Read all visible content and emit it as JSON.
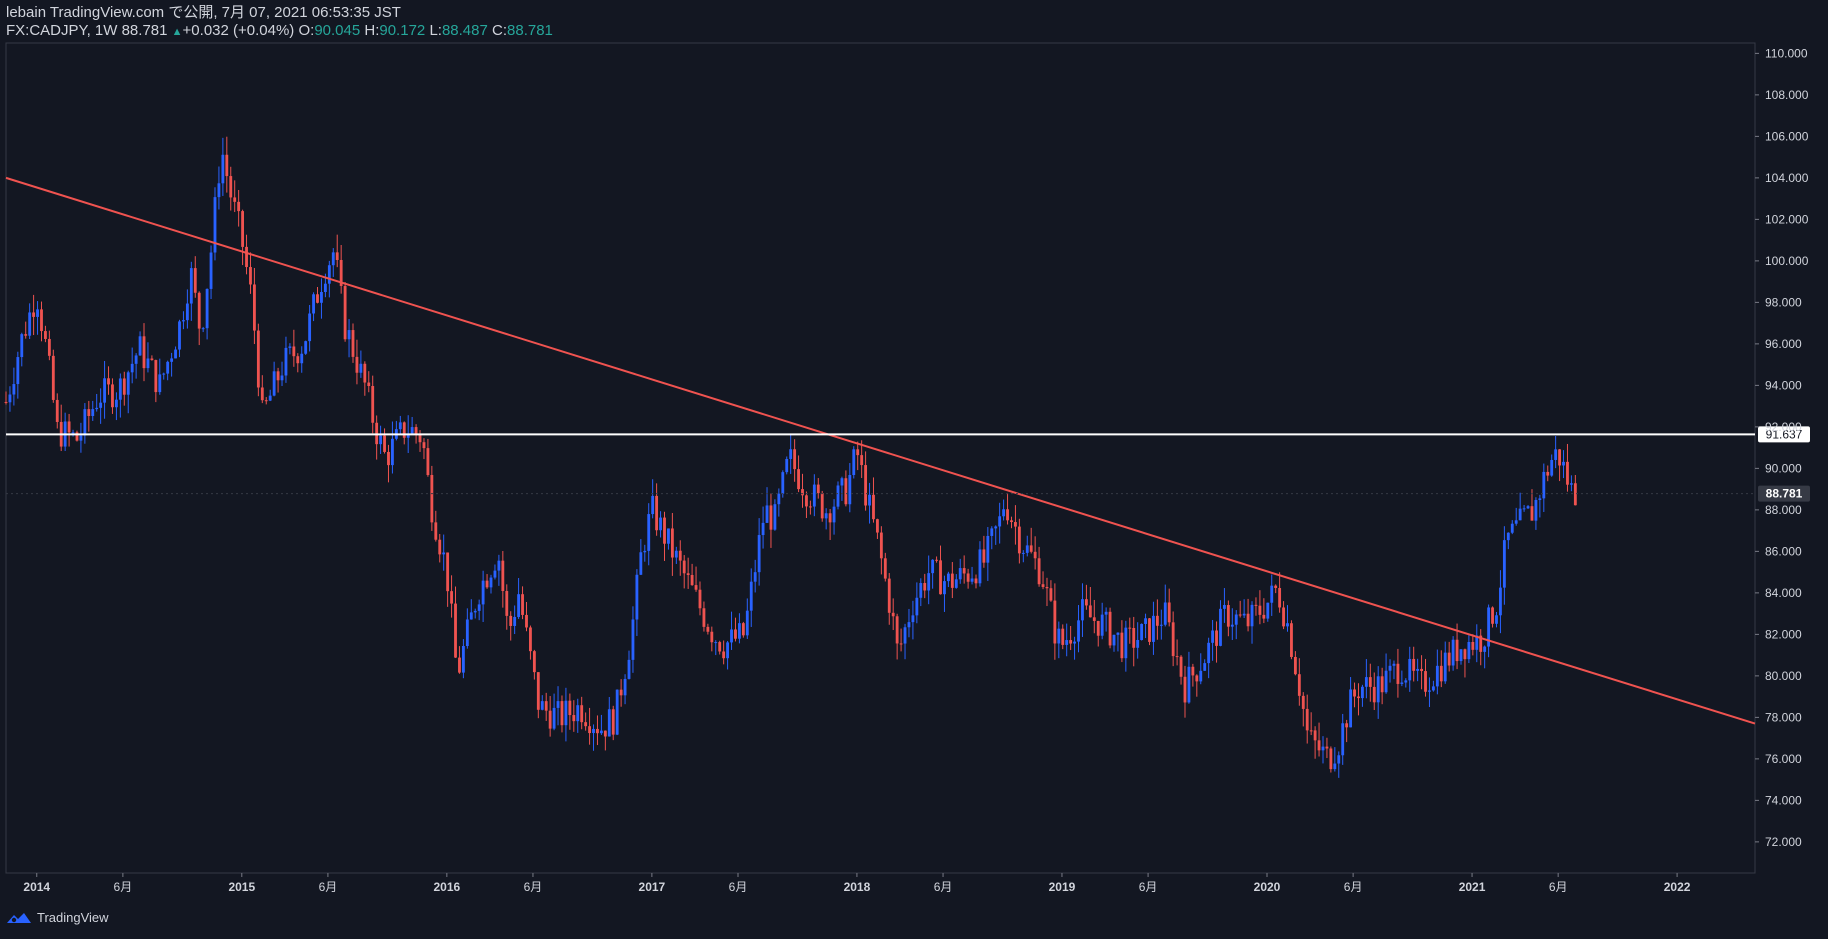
{
  "header": {
    "line1": "lebain TradingView.com で公開, 7月 07, 2021 06:53:35 JST",
    "symbol": "FX:CADJPY, 1W",
    "last": "88.781",
    "change": "+0.032 (+0.04%)",
    "o_label": "O:",
    "o_val": "90.045",
    "h_label": "H:",
    "h_val": "90.172",
    "l_label": "L:",
    "l_val": "88.487",
    "c_label": "C:",
    "c_val": "88.781"
  },
  "footer": {
    "brand": "TradingView"
  },
  "colors": {
    "background": "#131722",
    "bull": "#2962ff",
    "bear": "#ef5350",
    "trendline": "#f05350",
    "hline": "#ffffff",
    "text": "#d1d4dc",
    "accent_teal": "#26a69a"
  },
  "chart_data": {
    "type": "candlestick",
    "symbol": "FX:CADJPY",
    "timeframe": "1W",
    "ylim": [
      70.5,
      110.5
    ],
    "y_ticks": [
      "72.000",
      "74.000",
      "76.000",
      "78.000",
      "80.000",
      "82.000",
      "84.000",
      "86.000",
      "88.000",
      "90.000",
      "92.000",
      "94.000",
      "96.000",
      "98.000",
      "100.000",
      "102.000",
      "104.000",
      "106.000",
      "108.000",
      "110.000"
    ],
    "x_ticks": [
      {
        "label": "2014",
        "x": 2014.0
      },
      {
        "label": "6月",
        "x": 2014.42
      },
      {
        "label": "2015",
        "x": 2015.0
      },
      {
        "label": "6月",
        "x": 2015.42
      },
      {
        "label": "2016",
        "x": 2016.0
      },
      {
        "label": "6月",
        "x": 2016.42
      },
      {
        "label": "2017",
        "x": 2017.0
      },
      {
        "label": "6月",
        "x": 2017.42
      },
      {
        "label": "2018",
        "x": 2018.0
      },
      {
        "label": "6月",
        "x": 2018.42
      },
      {
        "label": "2019",
        "x": 2019.0
      },
      {
        "label": "6月",
        "x": 2019.42
      },
      {
        "label": "2020",
        "x": 2020.0
      },
      {
        "label": "6月",
        "x": 2020.42
      },
      {
        "label": "2021",
        "x": 2021.0
      },
      {
        "label": "6月",
        "x": 2021.42
      },
      {
        "label": "2022",
        "x": 2022.0
      }
    ],
    "x_range": [
      2013.85,
      2022.38
    ],
    "horizontal_line": {
      "value": 91.637,
      "label": "91.637"
    },
    "last_price": {
      "value": 88.781,
      "label": "88.781"
    },
    "trendline": {
      "points": [
        [
          2013.85,
          104.0
        ],
        [
          2022.38,
          77.7
        ]
      ]
    },
    "anchors": [
      [
        2013.85,
        93.2
      ],
      [
        2013.92,
        96.0
      ],
      [
        2014.0,
        98.5
      ],
      [
        2014.05,
        95.5
      ],
      [
        2014.1,
        91.8
      ],
      [
        2014.2,
        91.4
      ],
      [
        2014.3,
        93.5
      ],
      [
        2014.4,
        93.8
      ],
      [
        2014.5,
        95.8
      ],
      [
        2014.6,
        94.0
      ],
      [
        2014.7,
        97.0
      ],
      [
        2014.75,
        99.5
      ],
      [
        2014.8,
        96.5
      ],
      [
        2014.85,
        100.5
      ],
      [
        2014.9,
        105.5
      ],
      [
        2014.95,
        103.0
      ],
      [
        2015.0,
        101.0
      ],
      [
        2015.05,
        98.0
      ],
      [
        2015.1,
        92.5
      ],
      [
        2015.2,
        95.0
      ],
      [
        2015.3,
        96.0
      ],
      [
        2015.4,
        99.5
      ],
      [
        2015.45,
        100.5
      ],
      [
        2015.5,
        97.0
      ],
      [
        2015.6,
        94.0
      ],
      [
        2015.65,
        92.0
      ],
      [
        2015.7,
        90.5
      ],
      [
        2015.8,
        92.0
      ],
      [
        2015.88,
        91.5
      ],
      [
        2015.92,
        88.5
      ],
      [
        2016.0,
        85.0
      ],
      [
        2016.05,
        80.0
      ],
      [
        2016.15,
        84.0
      ],
      [
        2016.25,
        86.0
      ],
      [
        2016.3,
        82.0
      ],
      [
        2016.35,
        84.0
      ],
      [
        2016.45,
        78.5
      ],
      [
        2016.55,
        78.0
      ],
      [
        2016.65,
        78.5
      ],
      [
        2016.75,
        77.5
      ],
      [
        2016.82,
        78.0
      ],
      [
        2016.9,
        82.0
      ],
      [
        2016.95,
        86.0
      ],
      [
        2017.0,
        88.0
      ],
      [
        2017.1,
        86.0
      ],
      [
        2017.2,
        84.0
      ],
      [
        2017.3,
        82.0
      ],
      [
        2017.35,
        81.5
      ],
      [
        2017.45,
        82.0
      ],
      [
        2017.5,
        85.0
      ],
      [
        2017.55,
        88.0
      ],
      [
        2017.6,
        87.5
      ],
      [
        2017.67,
        90.5
      ],
      [
        2017.75,
        89.0
      ],
      [
        2017.85,
        88.0
      ],
      [
        2017.95,
        89.0
      ],
      [
        2018.0,
        90.8
      ],
      [
        2018.05,
        88.5
      ],
      [
        2018.1,
        86.5
      ],
      [
        2018.17,
        83.0
      ],
      [
        2018.2,
        81.0
      ],
      [
        2018.27,
        83.5
      ],
      [
        2018.35,
        85.0
      ],
      [
        2018.45,
        84.5
      ],
      [
        2018.55,
        85.0
      ],
      [
        2018.62,
        85.5
      ],
      [
        2018.7,
        87.5
      ],
      [
        2018.72,
        88.5
      ],
      [
        2018.8,
        86.5
      ],
      [
        2018.9,
        85.0
      ],
      [
        2018.97,
        82.0
      ],
      [
        2019.0,
        81.5
      ],
      [
        2019.1,
        83.0
      ],
      [
        2019.2,
        82.5
      ],
      [
        2019.3,
        81.5
      ],
      [
        2019.4,
        82.0
      ],
      [
        2019.5,
        83.0
      ],
      [
        2019.6,
        79.5
      ],
      [
        2019.7,
        81.0
      ],
      [
        2019.8,
        83.0
      ],
      [
        2019.9,
        82.5
      ],
      [
        2020.0,
        83.5
      ],
      [
        2020.05,
        84.2
      ],
      [
        2020.1,
        82.5
      ],
      [
        2020.15,
        80.0
      ],
      [
        2020.2,
        77.0
      ],
      [
        2020.25,
        76.5
      ],
      [
        2020.3,
        76.0
      ],
      [
        2020.35,
        76.8
      ],
      [
        2020.4,
        78.5
      ],
      [
        2020.45,
        79.5
      ],
      [
        2020.55,
        79.5
      ],
      [
        2020.65,
        80.5
      ],
      [
        2020.75,
        79.5
      ],
      [
        2020.85,
        80.5
      ],
      [
        2020.95,
        81.5
      ],
      [
        2021.05,
        81.8
      ],
      [
        2021.12,
        83.5
      ],
      [
        2021.17,
        86.5
      ],
      [
        2021.25,
        87.5
      ],
      [
        2021.3,
        88.0
      ],
      [
        2021.35,
        89.5
      ],
      [
        2021.4,
        90.7
      ],
      [
        2021.43,
        90.5
      ],
      [
        2021.48,
        89.0
      ],
      [
        2021.51,
        88.8
      ]
    ]
  }
}
